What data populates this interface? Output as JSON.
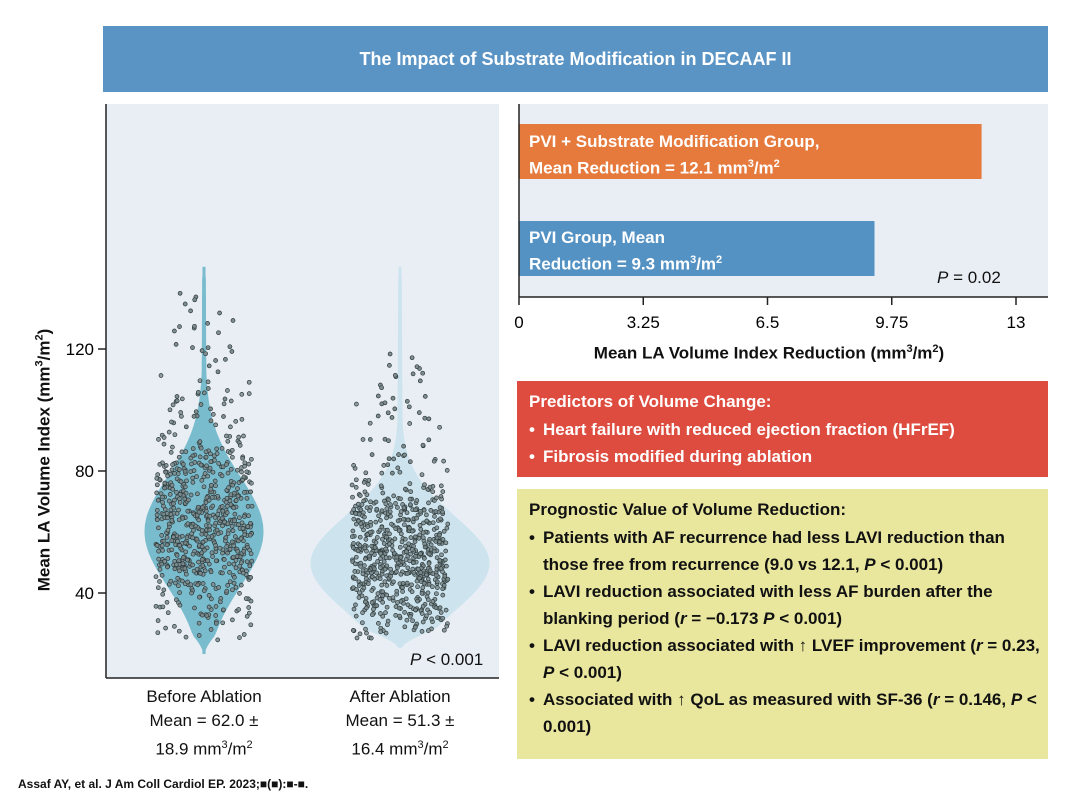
{
  "banner": {
    "title": "The Impact of Substrate Modification in DECAAF II"
  },
  "chart_data": [
    {
      "type": "violin",
      "ylabel": "Mean LA Volume Index (mm3/m2)",
      "ylabel_parts": [
        "Mean LA Volume Index (mm",
        "3",
        "/m",
        "2",
        ")"
      ],
      "yticks": [
        40,
        80,
        120
      ],
      "ylim": [
        17,
        160
      ],
      "groups": [
        {
          "name_line1": "Before Ablation",
          "name_line2": "Mean = 62.0 ±",
          "name_line3": "18.9 mm",
          "mean": 62.0,
          "sd": 18.9,
          "min": 20,
          "max": 147,
          "color": "#78bccd"
        },
        {
          "name_line1": "After Ablation",
          "name_line2": "Mean = 51.3 ±",
          "name_line3": "16.4 mm",
          "mean": 51.3,
          "sd": 16.4,
          "min": 22,
          "max": 147,
          "color": "#cde4ee"
        }
      ],
      "pvalue_label": "P",
      "pvalue_text": " < 0.001"
    },
    {
      "type": "bar",
      "orientation": "horizontal",
      "xlabel": "Mean LA Volume Index Reduction (mm3/m2)",
      "xlim": [
        0,
        13.8
      ],
      "xticks": [
        "0",
        "3.25",
        "6.5",
        "9.75",
        "13"
      ],
      "xtick_values": [
        0,
        3.25,
        6.5,
        9.75,
        13
      ],
      "series": [
        {
          "label_line1": "PVI + Substrate Modification Group,",
          "label_line2": "Mean Reduction = 12.1 mm",
          "value": 12.1,
          "color": "#e67a3d"
        },
        {
          "label_line1": "PVI Group, Mean",
          "label_line2": "Reduction = 9.3 mm",
          "value": 9.3,
          "color": "#5592c4"
        }
      ],
      "pvalue_label": "P",
      "pvalue_text": " = 0.02"
    }
  ],
  "unit": {
    "base": "mm",
    "sup3": "3",
    "mid": "/m",
    "sup2": "2"
  },
  "predictors": {
    "title": "Predictors of Volume Change:",
    "items": [
      "Heart failure with reduced ejection fraction (HFrEF)",
      "Fibrosis modified during ablation"
    ],
    "color": "#de4b3f"
  },
  "prognostic": {
    "title": "Prognostic Value of Volume Reduction:",
    "item1_a": "Patients with AF recurrence had less LAVI reduction than those free from recurrence (9.0 vs 12.1, ",
    "item1_p": "P",
    "item1_b": " < 0.001)",
    "item2_a": "LAVI reduction associated with less AF burden after the blanking period (",
    "item2_r": "r",
    "item2_b": " = −0.173 ",
    "item2_p": "P",
    "item2_c": " < 0.001)",
    "item3_a": "LAVI reduction associated with ↑ LVEF improvement (",
    "item3_r": "r",
    "item3_b": " = 0.23, ",
    "item3_p": "P",
    "item3_c": " < 0.001)",
    "item4_a": "Associated with ↑ QoL as measured with SF-36 (",
    "item4_r": "r",
    "item4_b": " = 0.146, ",
    "item4_p": "P",
    "item4_c": " < 0.001)",
    "color": "#e9e79e"
  },
  "footer": {
    "citation": "Assaf AY, et al. J Am Coll Cardiol EP. 2023;■(■):■-■."
  }
}
